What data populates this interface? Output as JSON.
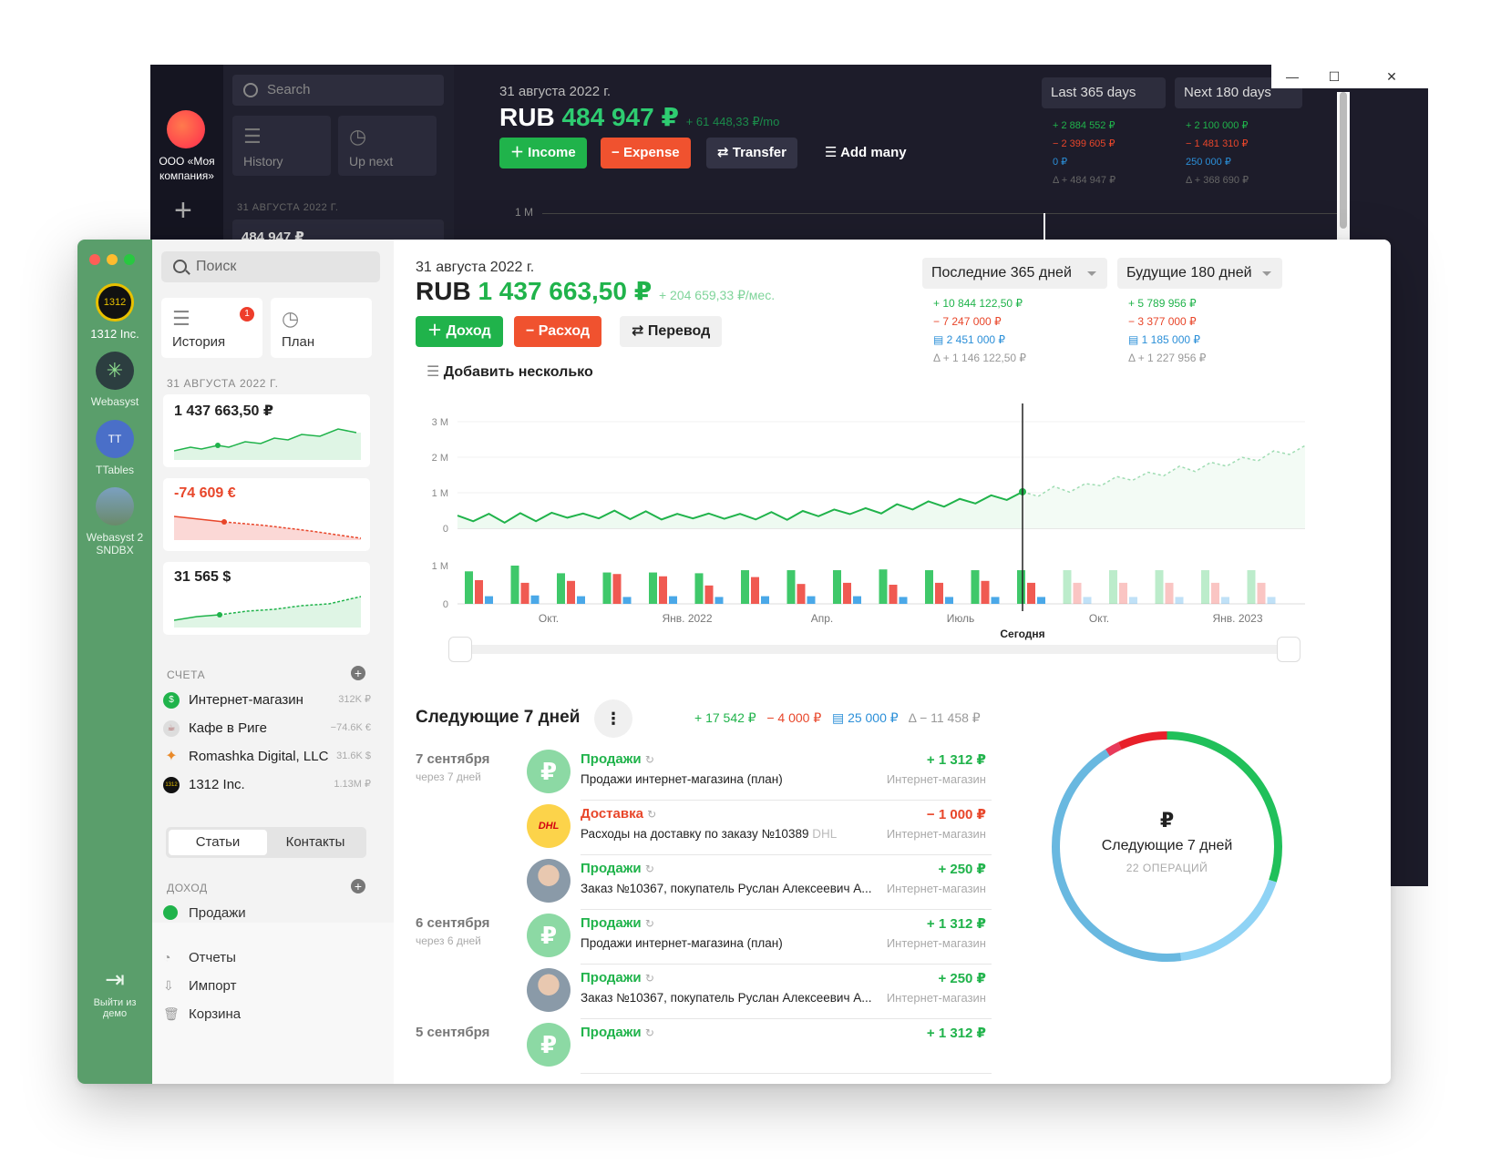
{
  "dark": {
    "company": "ООО «Моя компания»",
    "search_placeholder": "Search",
    "tiles": {
      "history": "History",
      "upnext": "Up next"
    },
    "section_date": "31 АВГУСТА 2022 Г.",
    "card_value": "484 947 ₽",
    "date": "31 августа 2022 г.",
    "currency": "RUB",
    "balance": "484 947 ₽",
    "per_month": "+ 61 448,33 ₽/mo",
    "buttons": {
      "income": "Income",
      "expense": "Expense",
      "transfer": "Transfer",
      "add_many": "Add many"
    },
    "range_past": "Last 365 days",
    "range_future": "Next 180 days",
    "past_stats": [
      "+ 2 884 552 ₽",
      "− 2 399 605 ₽",
      "0 ₽",
      "Δ + 484 947 ₽"
    ],
    "future_stats": [
      "+ 2 100 000 ₽",
      "− 1 481 310 ₽",
      "250 000 ₽",
      "Δ + 368 690 ₽"
    ],
    "tick": "1 M"
  },
  "rail": {
    "apps": [
      {
        "label": "1312 Inc.",
        "icon": "1312"
      },
      {
        "label": "Webasyst",
        "icon": "webasyst"
      },
      {
        "label": "TTables",
        "icon": "TT"
      },
      {
        "label": "Webasyst 2 SNDBX",
        "icon": "photo"
      }
    ],
    "logout": "Выйти из демо"
  },
  "sidebar": {
    "search_placeholder": "Поиск",
    "history": "История",
    "history_badge": "1",
    "plan": "План",
    "date_header": "31 АВГУСТА 2022 Г.",
    "cards": [
      {
        "value": "1 437 663,50 ₽",
        "trend": "up"
      },
      {
        "value": "-74 609 €",
        "trend": "down"
      },
      {
        "value": "31 565 $",
        "trend": "up"
      }
    ],
    "accounts_header": "СЧЕТА",
    "accounts": [
      {
        "name": "Интернет-магазин",
        "amount": "312K ₽",
        "icon": "$",
        "color": "#20b34b"
      },
      {
        "name": "Кафе в Риге",
        "amount": "−74.6K €",
        "icon": "☕",
        "color": "#bbbbbb"
      },
      {
        "name": "Romashka Digital, LLC",
        "amount": "31.6K $",
        "icon": "✦",
        "color": "#ffffff"
      },
      {
        "name": "1312 Inc.",
        "amount": "1.13M ₽",
        "icon": "1312",
        "color": "#222222"
      }
    ],
    "tabs": {
      "articles": "Статьи",
      "contacts": "Контакты"
    },
    "income_header": "ДОХОД",
    "income_items": [
      "Продажи"
    ],
    "nav": [
      "Отчеты",
      "Импорт",
      "Корзина"
    ]
  },
  "header": {
    "date": "31 августа 2022 г.",
    "currency": "RUB",
    "balance": "1 437 663,50 ₽",
    "per_month": "+ 204 659,33 ₽/мес.",
    "buttons": {
      "income": "Доход",
      "expense": "Расход",
      "transfer": "Перевод",
      "add_many": "Добавить несколько"
    },
    "range_past": "Последние 365 дней",
    "range_future": "Будущие 180 дней",
    "past_stats": {
      "income": "+ 10 844 122,50 ₽",
      "expense": "− 7 247 000 ₽",
      "transfer": "2 451 000 ₽",
      "delta": "Δ + 1 146 122,50 ₽"
    },
    "future_stats": {
      "income": "+ 5 789 956 ₽",
      "expense": "− 3 377 000 ₽",
      "transfer": "1 185 000 ₽",
      "delta": "Δ + 1 227 956 ₽"
    }
  },
  "chart_data": {
    "type": "line",
    "y_ticks": [
      "3 M",
      "2 M",
      "1 M",
      "0"
    ],
    "bar_ticks": [
      "1 M",
      "0"
    ],
    "x_ticks": [
      "Окт.",
      "Янв. 2022",
      "Апр.",
      "Июль",
      "Окт.",
      "Янв. 2023"
    ],
    "today_label": "Сегодня",
    "ylim": [
      0,
      3000000
    ],
    "today_index": 36,
    "balance_series": [
      0.28,
      0.3,
      0.33,
      0.26,
      0.35,
      0.3,
      0.36,
      0.4,
      0.34,
      0.38,
      0.42,
      0.36,
      0.4,
      0.35,
      0.33,
      0.38,
      0.34,
      0.37,
      0.33,
      0.35,
      0.38,
      0.34,
      0.41,
      0.44,
      0.45,
      0.5,
      0.49,
      0.52,
      0.6,
      0.63,
      0.68,
      0.71,
      0.75,
      0.8,
      0.85,
      0.9,
      0.95,
      1.0,
      1.1,
      1.12,
      1.18,
      1.3,
      1.38,
      1.45,
      1.5,
      1.58,
      1.67,
      1.7,
      1.78,
      1.85,
      1.92,
      2.0,
      2.1,
      2.18,
      2.25
    ],
    "bars": [
      {
        "income": 0.85,
        "expense": 0.62,
        "transfer": 0.2
      },
      {
        "income": 1.0,
        "expense": 0.55,
        "transfer": 0.22
      },
      {
        "income": 0.8,
        "expense": 0.6,
        "transfer": 0.2
      },
      {
        "income": 0.82,
        "expense": 0.78,
        "transfer": 0.18
      },
      {
        "income": 0.82,
        "expense": 0.72,
        "transfer": 0.2
      },
      {
        "income": 0.8,
        "expense": 0.48,
        "transfer": 0.18
      },
      {
        "income": 0.88,
        "expense": 0.7,
        "transfer": 0.2
      },
      {
        "income": 0.88,
        "expense": 0.52,
        "transfer": 0.2
      },
      {
        "income": 0.88,
        "expense": 0.55,
        "transfer": 0.2
      },
      {
        "income": 0.9,
        "expense": 0.5,
        "transfer": 0.18
      },
      {
        "income": 0.88,
        "expense": 0.55,
        "transfer": 0.18
      },
      {
        "income": 0.88,
        "expense": 0.6,
        "transfer": 0.18
      },
      {
        "income": 0.88,
        "expense": 0.55,
        "transfer": 0.18
      },
      {
        "income": 0.88,
        "expense": 0.55,
        "transfer": 0.18
      },
      {
        "income": 0.88,
        "expense": 0.55,
        "transfer": 0.18
      },
      {
        "income": 0.88,
        "expense": 0.55,
        "transfer": 0.18
      },
      {
        "income": 0.88,
        "expense": 0.55,
        "transfer": 0.18
      },
      {
        "income": 0.88,
        "expense": 0.55,
        "transfer": 0.18
      }
    ],
    "colors": {
      "line": "#20b34b",
      "income": "#3fc86a",
      "expense": "#f05a52",
      "transfer": "#4aa8e8"
    }
  },
  "upcoming": {
    "title": "Следующие 7 дней",
    "income": "+ 17 542 ₽",
    "expense": "− 4 000 ₽",
    "transfer": "25 000 ₽",
    "delta": "Δ − 11 458 ₽",
    "groups": [
      {
        "date": "7 сентября",
        "sub": "через 7 дней",
        "items": [
          {
            "cat": "Продажи",
            "cat_color": "green",
            "desc": "Продажи интернет-магазина (план)",
            "amount": "+ 1 312 ₽",
            "amount_color": "green",
            "account": "Интернет-магазин",
            "avatar": "ruble"
          },
          {
            "cat": "Доставка",
            "cat_color": "red",
            "desc": "Расходы на доставку по заказу №10389",
            "desc_tag": "DHL",
            "amount": "− 1 000 ₽",
            "amount_color": "red",
            "account": "Интернет-магазин",
            "avatar": "dhl"
          },
          {
            "cat": "Продажи",
            "cat_color": "green",
            "desc": "Заказ №10367, покупатель Руслан Алексеевич А...",
            "amount": "+ 250 ₽",
            "amount_color": "green",
            "account": "Интернет-магазин",
            "avatar": "person"
          }
        ]
      },
      {
        "date": "6 сентября",
        "sub": "через 6 дней",
        "items": [
          {
            "cat": "Продажи",
            "cat_color": "green",
            "desc": "Продажи интернет-магазина (план)",
            "amount": "+ 1 312 ₽",
            "amount_color": "green",
            "account": "Интернет-магазин",
            "avatar": "ruble"
          },
          {
            "cat": "Продажи",
            "cat_color": "green",
            "desc": "Заказ №10367, покупатель Руслан Алексеевич А...",
            "amount": "+ 250 ₽",
            "amount_color": "green",
            "account": "Интернет-магазин",
            "avatar": "person"
          }
        ]
      },
      {
        "date": "5 сентября",
        "sub": "",
        "items": [
          {
            "cat": "Продажи",
            "cat_color": "green",
            "desc": "",
            "amount": "+ 1 312 ₽",
            "amount_color": "green",
            "account": "",
            "avatar": "ruble"
          }
        ]
      }
    ],
    "donut": {
      "symbol": "₽",
      "title": "Следующие 7 дней",
      "sub": "22 ОПЕРАЦИЙ",
      "segments": [
        {
          "share": 0.3,
          "color": "#20c05a"
        },
        {
          "share": 0.18,
          "color": "#8fd3f5"
        },
        {
          "share": 0.43,
          "color": "#69b8e0"
        },
        {
          "share": 0.02,
          "color": "#e83a5a"
        },
        {
          "share": 0.07,
          "color": "#e8202a"
        }
      ]
    }
  }
}
